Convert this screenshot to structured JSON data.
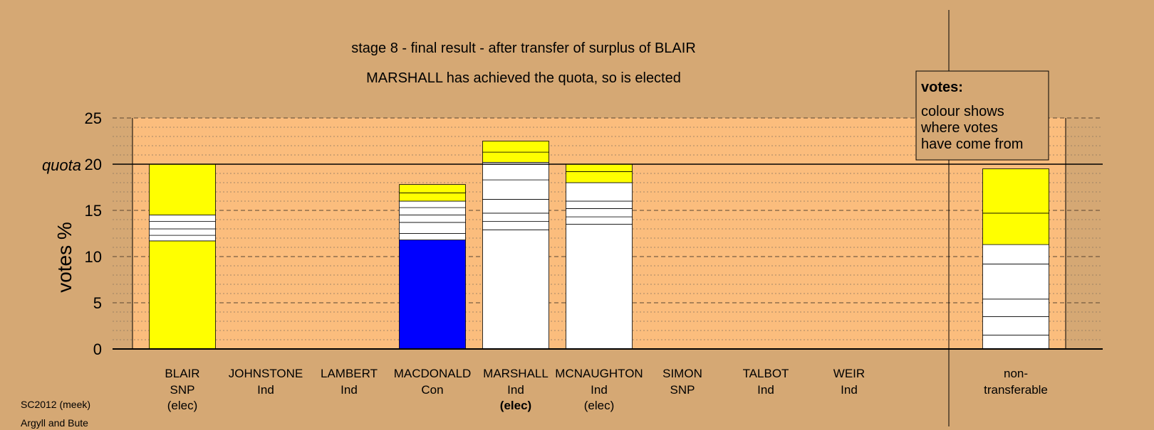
{
  "chart_data": {
    "type": "bar",
    "title": "stage 8 - final result - after transfer of surplus of BLAIR",
    "subtitle": "MARSHALL has achieved the quota, so is elected",
    "ylabel": "votes %",
    "ylim": [
      0,
      25
    ],
    "yticks": [
      "0",
      "5",
      "10",
      "15",
      "20",
      "25"
    ],
    "quota": 20,
    "quota_label": "quota",
    "grid": true,
    "legend": {
      "title": "votes:",
      "lines": [
        "colour shows",
        "where votes",
        "have come from"
      ],
      "placement": "top-right"
    },
    "colors": {
      "background": "#d5a874",
      "plot_area": "#fbbd7d",
      "SNP": "#ffff00",
      "Con": "#0000ff",
      "Ind": "#ffffff"
    },
    "candidates": [
      {
        "name": "BLAIR",
        "party": "SNP",
        "status": "(elec)",
        "status_bold": false,
        "segments": [
          {
            "color": "#0000ff",
            "from": 0,
            "to": 0
          },
          {
            "color": "#ffff00",
            "from": 0,
            "to": 11.7
          },
          {
            "color": "#ffffff",
            "from": 11.7,
            "to": 12.3
          },
          {
            "color": "#ffffff",
            "from": 12.3,
            "to": 13.0
          },
          {
            "color": "#ffffff",
            "from": 13.0,
            "to": 13.8
          },
          {
            "color": "#ffffff",
            "from": 13.8,
            "to": 14.5
          },
          {
            "color": "#ffff00",
            "from": 14.5,
            "to": 20.0
          }
        ]
      },
      {
        "name": "JOHNSTONE",
        "party": "Ind",
        "status": "",
        "status_bold": false,
        "segments": []
      },
      {
        "name": "LAMBERT",
        "party": "Ind",
        "status": "",
        "status_bold": false,
        "segments": []
      },
      {
        "name": "MACDONALD",
        "party": "Con",
        "status": "",
        "status_bold": false,
        "segments": [
          {
            "color": "#0000ff",
            "from": 0,
            "to": 11.8
          },
          {
            "color": "#ffffff",
            "from": 11.8,
            "to": 12.5
          },
          {
            "color": "#ffffff",
            "from": 12.5,
            "to": 13.7
          },
          {
            "color": "#ffffff",
            "from": 13.7,
            "to": 14.5
          },
          {
            "color": "#ffffff",
            "from": 14.5,
            "to": 15.3
          },
          {
            "color": "#ffffff",
            "from": 15.3,
            "to": 16.0
          },
          {
            "color": "#ffff00",
            "from": 16.0,
            "to": 16.9
          },
          {
            "color": "#ffff00",
            "from": 16.9,
            "to": 17.8
          }
        ]
      },
      {
        "name": "MARSHALL",
        "party": "Ind",
        "status": "(elec)",
        "status_bold": true,
        "segments": [
          {
            "color": "#ffffff",
            "from": 0,
            "to": 12.9
          },
          {
            "color": "#ffffff",
            "from": 12.9,
            "to": 13.8
          },
          {
            "color": "#ffffff",
            "from": 13.8,
            "to": 14.7
          },
          {
            "color": "#ffffff",
            "from": 14.7,
            "to": 16.2
          },
          {
            "color": "#ffffff",
            "from": 16.2,
            "to": 18.3
          },
          {
            "color": "#ffffff",
            "from": 18.3,
            "to": 20.2
          },
          {
            "color": "#ffff00",
            "from": 20.2,
            "to": 21.3
          },
          {
            "color": "#ffff00",
            "from": 21.3,
            "to": 22.5
          }
        ]
      },
      {
        "name": "MCNAUGHTON",
        "party": "Ind",
        "status": "(elec)",
        "status_bold": false,
        "segments": [
          {
            "color": "#ffffff",
            "from": 0,
            "to": 13.5
          },
          {
            "color": "#ffffff",
            "from": 13.5,
            "to": 14.3
          },
          {
            "color": "#ffffff",
            "from": 14.3,
            "to": 15.2
          },
          {
            "color": "#ffffff",
            "from": 15.2,
            "to": 16.0
          },
          {
            "color": "#ffffff",
            "from": 16.0,
            "to": 18.0
          },
          {
            "color": "#ffff00",
            "from": 18.0,
            "to": 19.2
          },
          {
            "color": "#ffff00",
            "from": 19.2,
            "to": 20.0
          }
        ]
      },
      {
        "name": "SIMON",
        "party": "SNP",
        "status": "",
        "status_bold": false,
        "segments": []
      },
      {
        "name": "TALBOT",
        "party": "Ind",
        "status": "",
        "status_bold": false,
        "segments": []
      },
      {
        "name": "WEIR",
        "party": "Ind",
        "status": "",
        "status_bold": false,
        "segments": []
      }
    ],
    "nontransferable": {
      "label_lines": [
        "non-",
        "transferable"
      ],
      "segments": [
        {
          "color": "#ffffff",
          "from": 0,
          "to": 1.5
        },
        {
          "color": "#ffffff",
          "from": 1.5,
          "to": 3.5
        },
        {
          "color": "#ffffff",
          "from": 3.5,
          "to": 5.4
        },
        {
          "color": "#ffffff",
          "from": 5.4,
          "to": 9.2
        },
        {
          "color": "#ffffff",
          "from": 9.2,
          "to": 11.3
        },
        {
          "color": "#ffff00",
          "from": 11.3,
          "to": 14.7
        },
        {
          "color": "#ffff00",
          "from": 14.7,
          "to": 19.5
        }
      ]
    }
  },
  "footer": {
    "line1": "SC2012 (meek)",
    "line2": "Argyll and Bute"
  }
}
